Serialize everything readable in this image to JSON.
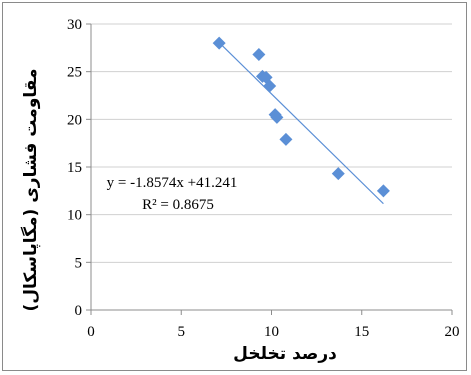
{
  "chart_data": {
    "type": "scatter",
    "xlabel": "درصد تخلخل",
    "ylabel": "مقاومت فشاری (مگاپاسکال)",
    "xlim": [
      0,
      20
    ],
    "ylim": [
      0,
      30
    ],
    "xticks": [
      "0",
      "5",
      "10",
      "15",
      "20"
    ],
    "yticks": [
      "0",
      "5",
      "10",
      "15",
      "20",
      "25",
      "30"
    ],
    "grid": "horizontal",
    "marker": "diamond",
    "marker_color": "#5b8fd6",
    "trendline_color": "#5b8fd6",
    "points": [
      {
        "x": 7.1,
        "y": 28.0
      },
      {
        "x": 9.3,
        "y": 26.8
      },
      {
        "x": 9.5,
        "y": 24.5
      },
      {
        "x": 9.7,
        "y": 24.4
      },
      {
        "x": 9.9,
        "y": 23.5
      },
      {
        "x": 10.2,
        "y": 20.5
      },
      {
        "x": 10.3,
        "y": 20.2
      },
      {
        "x": 10.8,
        "y": 17.9
      },
      {
        "x": 13.7,
        "y": 14.3
      },
      {
        "x": 16.2,
        "y": 12.5
      }
    ],
    "trendline": {
      "slope": -1.8574,
      "intercept": 41.241,
      "x_range": [
        7.1,
        16.2
      ]
    },
    "annotations": {
      "equation": "y = -1.8574x +41.241",
      "r2": "R² = 0.8675"
    }
  }
}
